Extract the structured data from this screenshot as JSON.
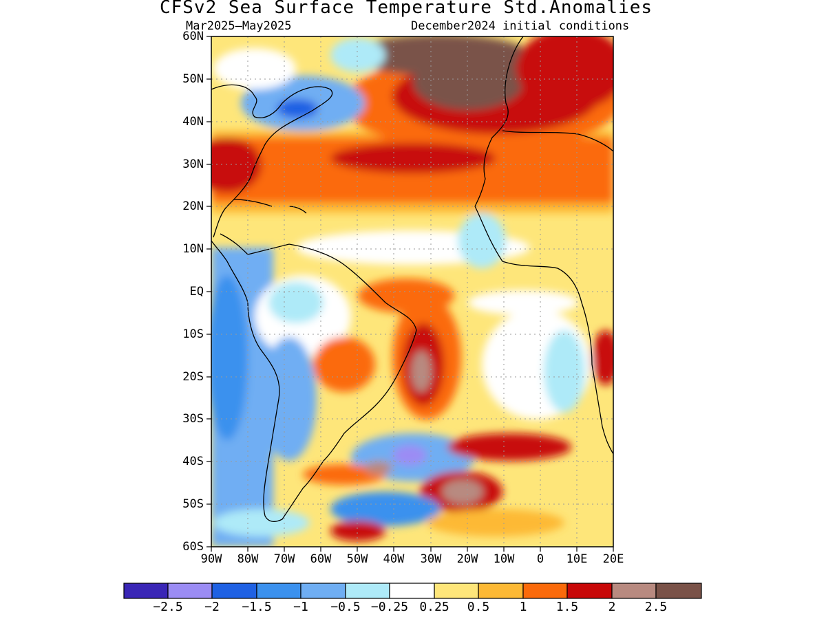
{
  "title": "CFSv2 Sea Surface Temperature Std.Anomalies",
  "subtitle_left": "Mar2025–May2025",
  "subtitle_right": "December2024 initial conditions",
  "lat_labels": [
    "60N",
    "50N",
    "40N",
    "30N",
    "20N",
    "10N",
    "EQ",
    "10S",
    "20S",
    "30S",
    "40S",
    "50S",
    "60S"
  ],
  "lon_labels": [
    "90W",
    "80W",
    "70W",
    "60W",
    "50W",
    "40W",
    "30W",
    "20W",
    "10W",
    "0",
    "10E",
    "20E"
  ],
  "colorbar": {
    "labels": [
      "−2.5",
      "−2",
      "−1.5",
      "−1",
      "−0.5",
      "−0.25",
      "0.25",
      "0.5",
      "1",
      "1.5",
      "2",
      "2.5"
    ],
    "colors": [
      "#3a26b6",
      "#9b8cf4",
      "#1f61e3",
      "#3b91ee",
      "#6faef3",
      "#aeeaf8",
      "#ffffff",
      "#fee67a",
      "#fdb935",
      "#fb6a0a",
      "#c80808",
      "#b88a80",
      "#7a5248"
    ]
  }
}
